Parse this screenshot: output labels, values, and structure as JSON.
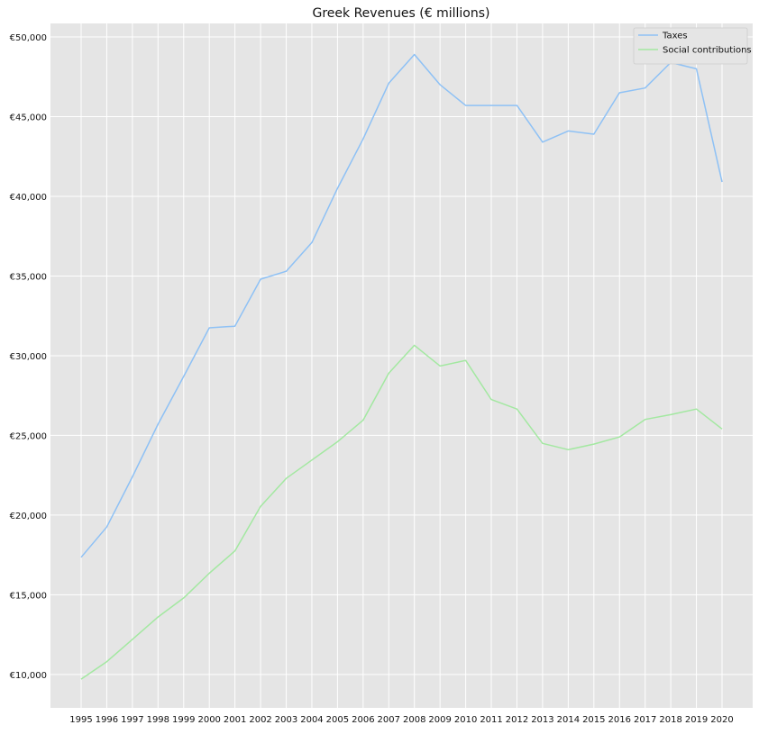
{
  "chart_data": {
    "type": "line",
    "title": "Greek Revenues (€ millions)",
    "xlabel": "",
    "ylabel": "",
    "x": [
      1995,
      1996,
      1997,
      1998,
      1999,
      2000,
      2001,
      2002,
      2003,
      2004,
      2005,
      2006,
      2007,
      2008,
      2009,
      2010,
      2011,
      2012,
      2013,
      2014,
      2015,
      2016,
      2017,
      2018,
      2019,
      2020
    ],
    "x_tick_labels": [
      "1995",
      "1996",
      "1997",
      "1998",
      "1999",
      "2000",
      "2001",
      "2002",
      "2003",
      "2004",
      "2005",
      "2006",
      "2007",
      "2008",
      "2009",
      "2010",
      "2011",
      "2012",
      "2013",
      "2014",
      "2015",
      "2016",
      "2017",
      "2018",
      "2019",
      "2020"
    ],
    "ylim": [
      7900,
      50850
    ],
    "y_ticks": [
      10000,
      15000,
      20000,
      25000,
      30000,
      35000,
      40000,
      45000,
      50000
    ],
    "y_tick_labels": [
      "€10,000",
      "€15,000",
      "€20,000",
      "€25,000",
      "€30,000",
      "€35,000",
      "€40,000",
      "€45,000",
      "€50,000"
    ],
    "grid": true,
    "legend_position": "top-right",
    "series": [
      {
        "name": "Taxes",
        "color": "#8ec1f5",
        "values": [
          17350,
          19250,
          22400,
          25700,
          28700,
          31750,
          31850,
          34800,
          35300,
          37100,
          40500,
          43600,
          47100,
          48900,
          47000,
          45700,
          45700,
          45700,
          43400,
          44100,
          43900,
          46500,
          46800,
          48400,
          48000,
          40900
        ]
      },
      {
        "name": "Social contributions",
        "color": "#a3e8a1",
        "values": [
          9700,
          10800,
          12200,
          13600,
          14800,
          16350,
          17750,
          20550,
          22300,
          23450,
          24600,
          25950,
          28900,
          30650,
          29350,
          29700,
          27250,
          26650,
          24500,
          24100,
          24450,
          24900,
          26000,
          26300,
          26650,
          25400
        ]
      }
    ]
  },
  "colors": {
    "plot_background": "#e5e5e5",
    "grid": "#ffffff",
    "text": "#111111"
  }
}
